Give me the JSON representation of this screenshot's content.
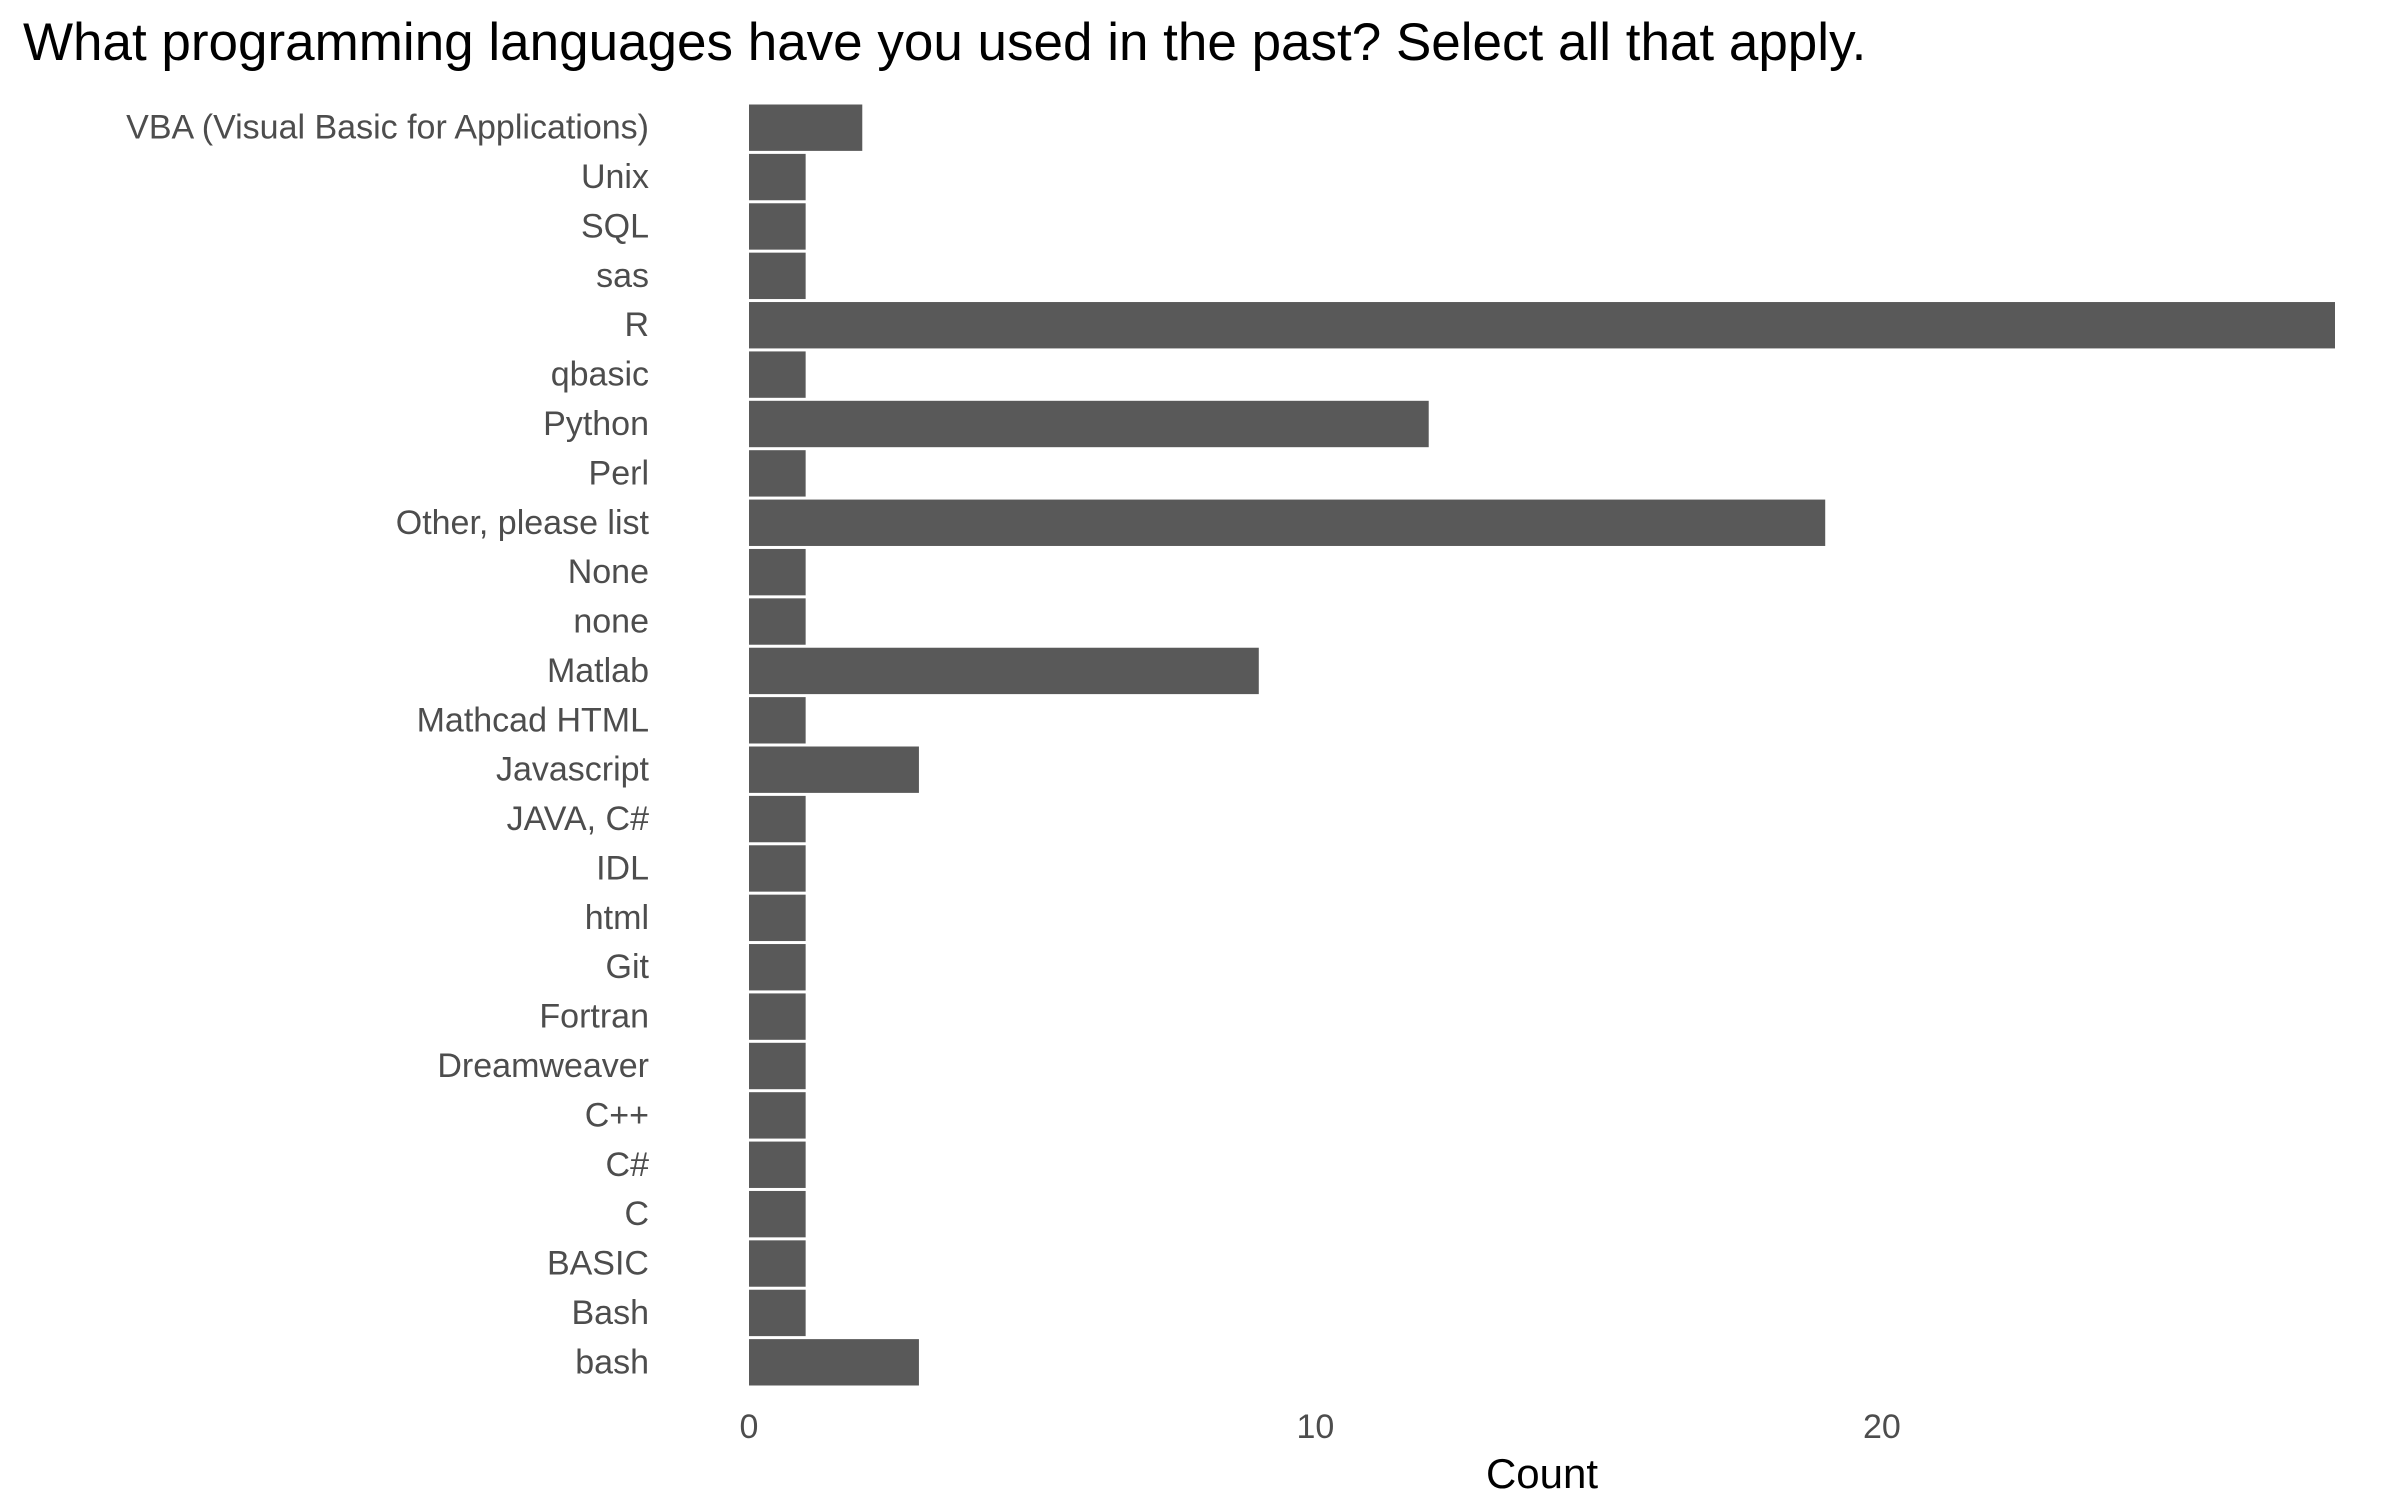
{
  "chart_data": {
    "type": "bar",
    "orientation": "horizontal",
    "title": "What programming languages have you used in the past? Select all that apply.",
    "xlabel": "Count",
    "ylabel": "",
    "categories": [
      "VBA (Visual Basic for Applications)",
      "Unix",
      "SQL",
      "sas",
      "R",
      "qbasic",
      "Python",
      "Perl",
      "Other, please list",
      "None",
      "none",
      "Matlab",
      "Mathcad HTML",
      "Javascript",
      "JAVA, C#",
      "IDL",
      "html",
      "Git",
      "Fortran",
      "Dreamweaver",
      "C++",
      "C#",
      "C",
      "BASIC",
      "Bash",
      "bash"
    ],
    "values": [
      2,
      1,
      1,
      1,
      28,
      1,
      12,
      1,
      19,
      1,
      1,
      9,
      1,
      3,
      1,
      1,
      1,
      1,
      1,
      1,
      1,
      1,
      1,
      1,
      1,
      3
    ],
    "xlim": [
      0,
      28
    ],
    "xticks": [
      0,
      10,
      20
    ],
    "grid": false,
    "bar_color": "#595959"
  }
}
